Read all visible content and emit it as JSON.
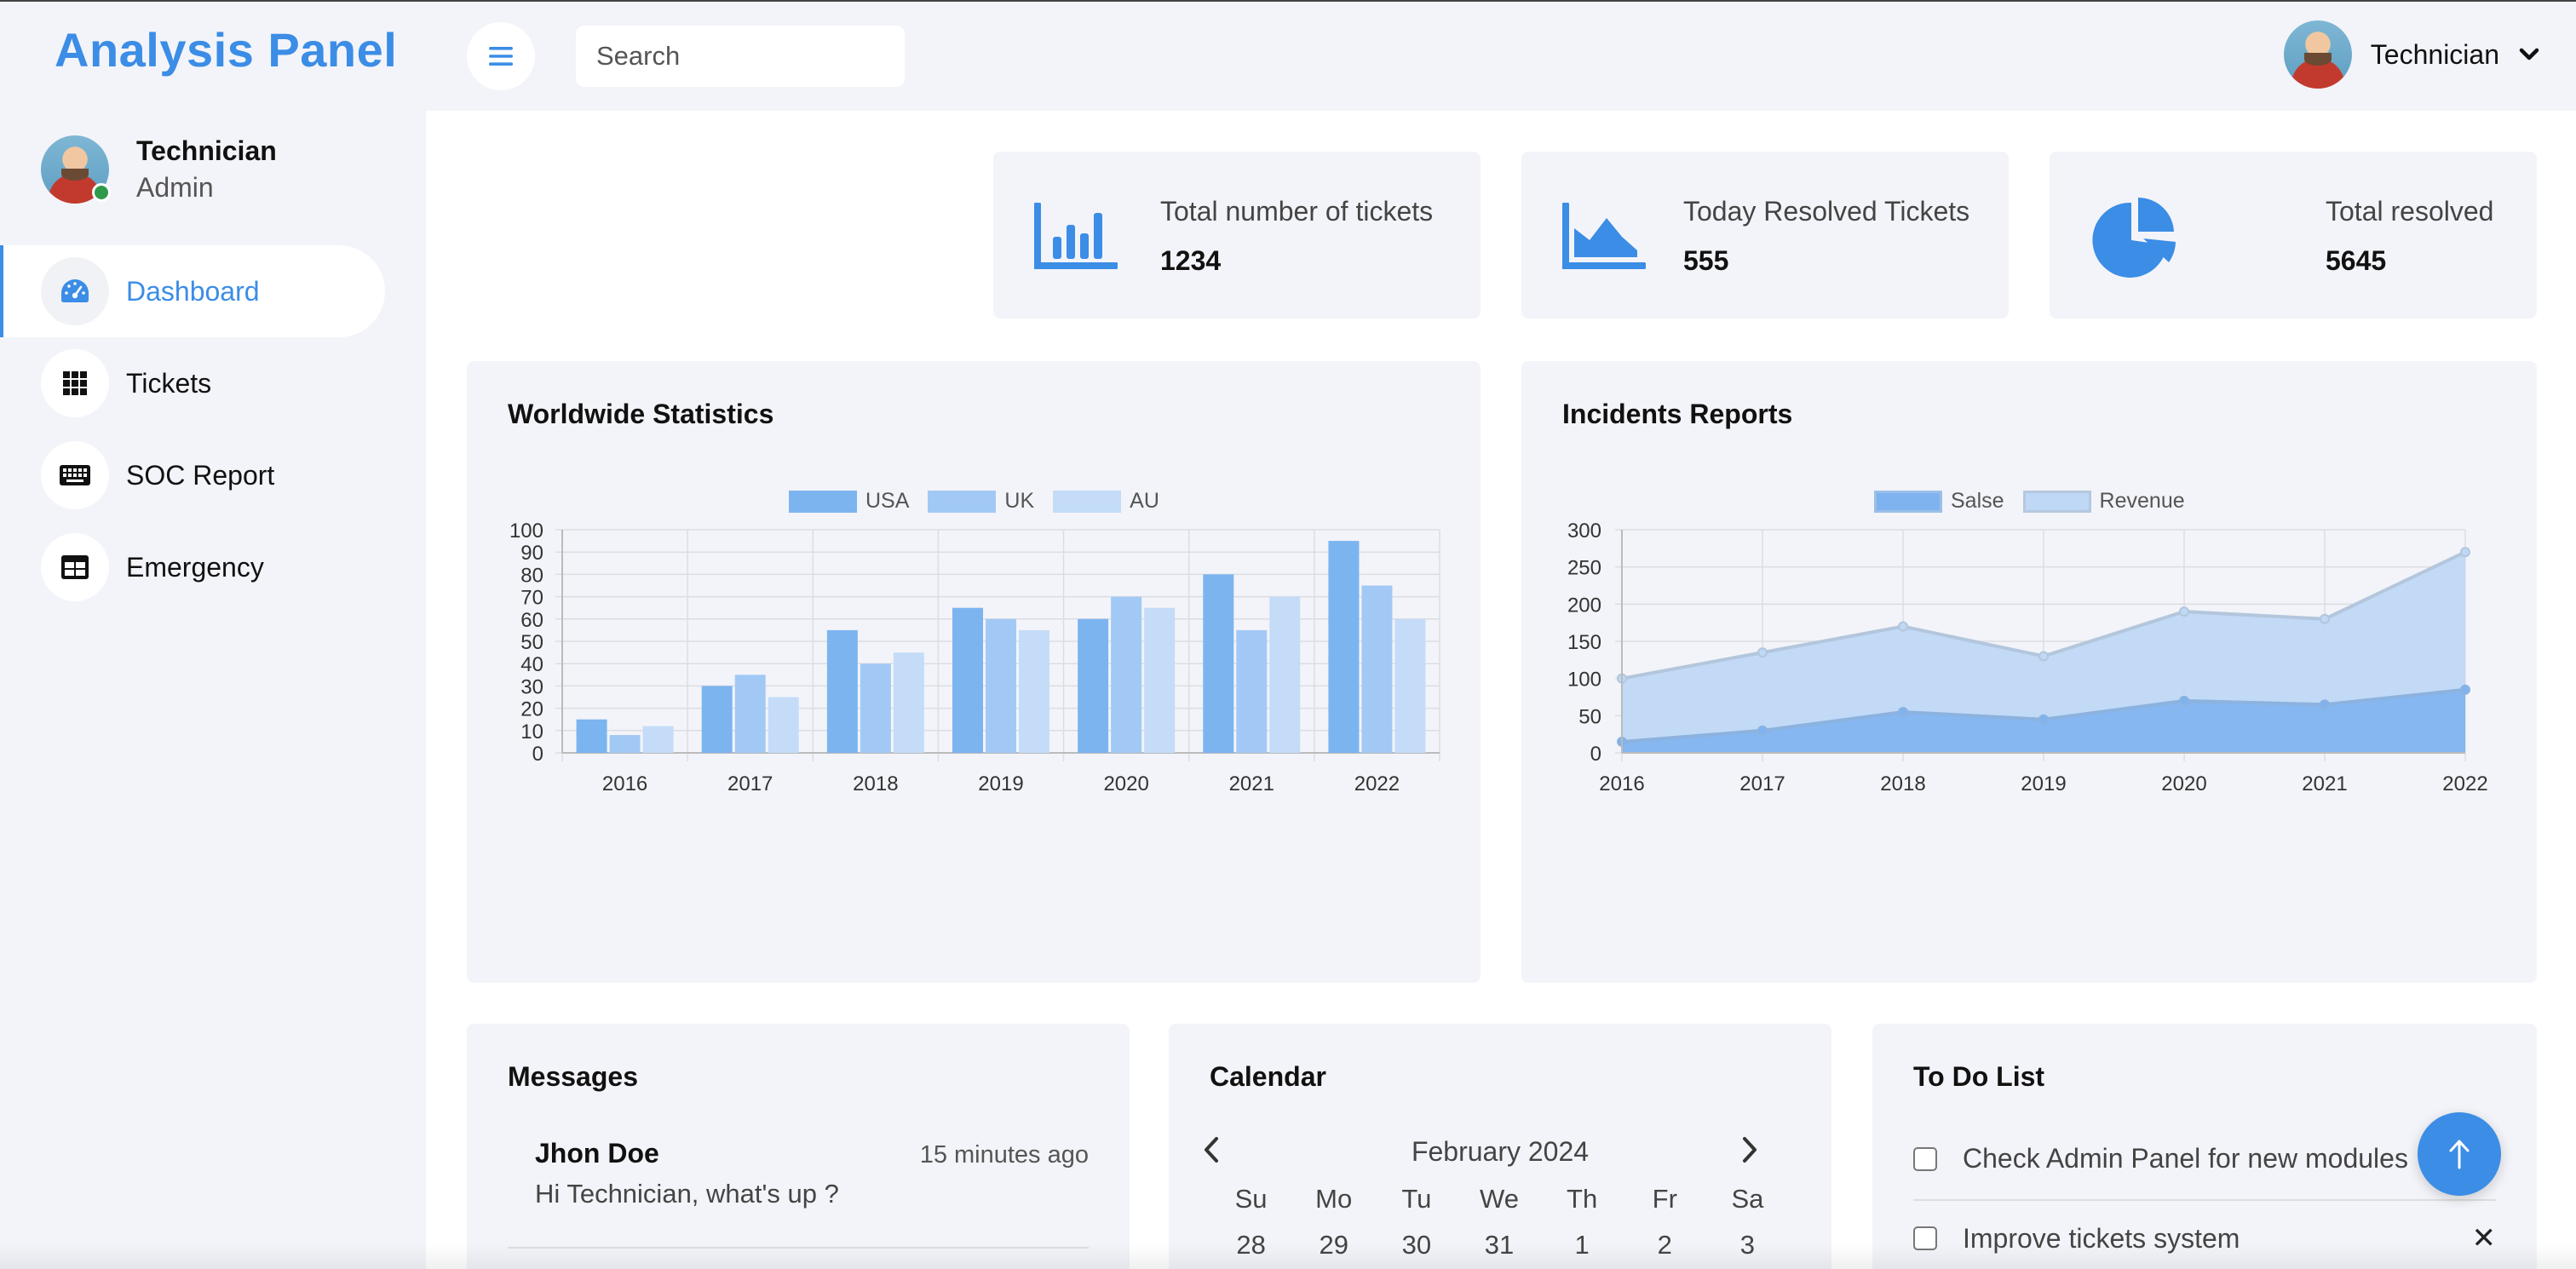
{
  "app": {
    "title": "Analysis Panel"
  },
  "header": {
    "search_placeholder": "Search",
    "user_name": "Technician"
  },
  "sidebar": {
    "profile": {
      "name": "Technician",
      "role": "Admin"
    },
    "items": [
      {
        "label": "Dashboard",
        "icon": "speedometer-icon",
        "active": true
      },
      {
        "label": "Tickets",
        "icon": "grid-icon"
      },
      {
        "label": "SOC Report",
        "icon": "keyboard-icon"
      },
      {
        "label": "Emergency",
        "icon": "table-icon"
      }
    ]
  },
  "stats": [
    {
      "title": "Total number of tickets",
      "value": "1234",
      "icon": "bar-chart-icon"
    },
    {
      "title": "Today Resolved Tickets",
      "value": "555",
      "icon": "area-chart-icon"
    },
    {
      "title": "Total resolved",
      "value": "5645",
      "icon": "pie-chart-icon"
    }
  ],
  "colors": {
    "accent": "#3b8de6",
    "usa": "#7cb4f0",
    "uk": "#a2c9f5",
    "au": "#c4dcf7",
    "sales": "#7fb3f0",
    "revenue": "#bfd8f5"
  },
  "chart_data": [
    {
      "type": "bar",
      "title": "Worldwide Statistics",
      "categories": [
        "2016",
        "2017",
        "2018",
        "2019",
        "2020",
        "2021",
        "2022"
      ],
      "series": [
        {
          "name": "USA",
          "values": [
            15,
            30,
            55,
            65,
            60,
            80,
            95
          ]
        },
        {
          "name": "UK",
          "values": [
            8,
            35,
            40,
            60,
            70,
            55,
            75
          ]
        },
        {
          "name": "AU",
          "values": [
            12,
            25,
            45,
            55,
            65,
            70,
            60
          ]
        }
      ],
      "ylim": [
        0,
        100
      ],
      "yticks": [
        0,
        10,
        20,
        30,
        40,
        50,
        60,
        70,
        80,
        90,
        100
      ],
      "grid": true,
      "legend": "top-center"
    },
    {
      "type": "area",
      "title": "Incidents Reports",
      "categories": [
        "2016",
        "2017",
        "2018",
        "2019",
        "2020",
        "2021",
        "2022"
      ],
      "series": [
        {
          "name": "Salse",
          "values": [
            15,
            30,
            55,
            45,
            70,
            65,
            85
          ]
        },
        {
          "name": "Revenue",
          "values": [
            100,
            135,
            170,
            130,
            190,
            180,
            270
          ]
        }
      ],
      "ylim": [
        0,
        300
      ],
      "yticks": [
        0,
        50,
        100,
        150,
        200,
        250,
        300
      ],
      "grid": true,
      "legend": "top-center"
    }
  ],
  "messages": {
    "title": "Messages",
    "items": [
      {
        "name": "Jhon Doe",
        "time": "15 minutes ago",
        "text": "Hi Technician, what's up ?"
      }
    ]
  },
  "calendar": {
    "title": "Calendar",
    "month": "February 2024",
    "prev": "‹",
    "next": "›",
    "weekdays": [
      "Su",
      "Mo",
      "Tu",
      "We",
      "Th",
      "Fr",
      "Sa"
    ],
    "days": [
      "28",
      "29",
      "30",
      "31",
      "1",
      "2",
      "3"
    ]
  },
  "todo": {
    "title": "To Do List",
    "items": [
      {
        "label": "Check Admin Panel for new modules",
        "delete": ""
      },
      {
        "label": "Improve tickets system",
        "delete": "✕"
      }
    ]
  }
}
